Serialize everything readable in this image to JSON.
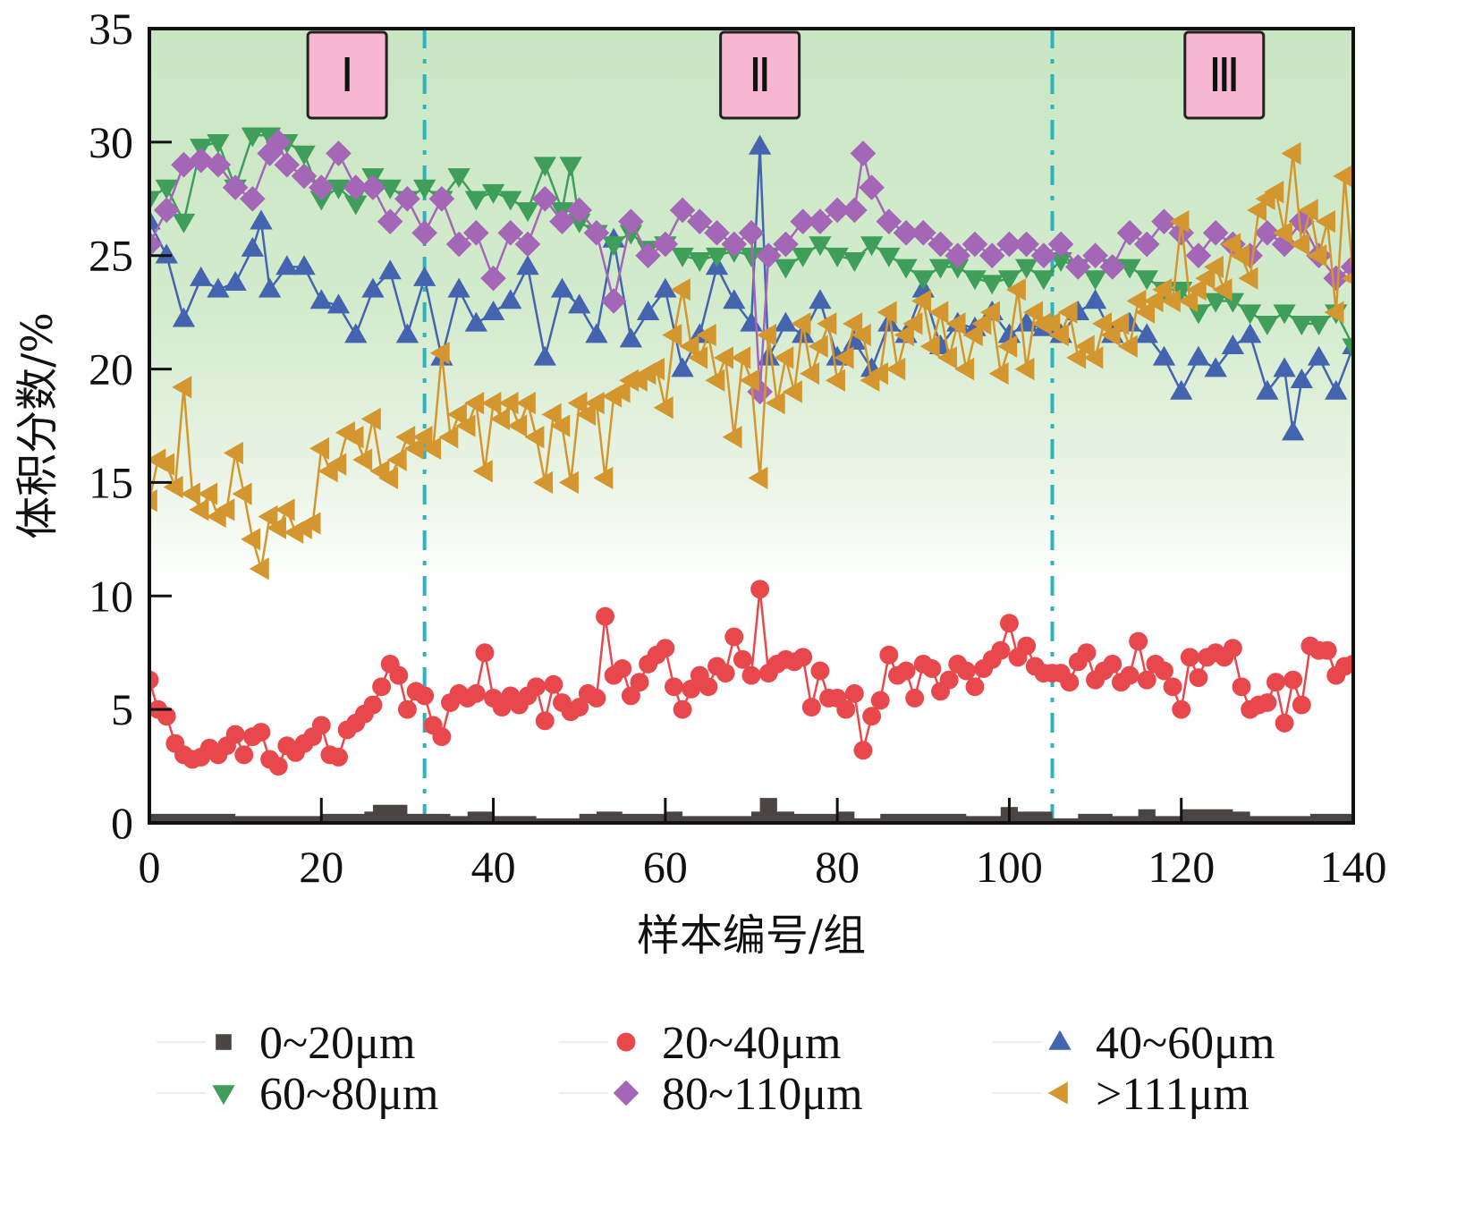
{
  "chart_data": {
    "type": "line",
    "title": "",
    "xlabel": "样本编号/组",
    "ylabel": "体积分数/%",
    "xlim": [
      0,
      140
    ],
    "ylim": [
      0,
      35
    ],
    "xticks": [
      0,
      20,
      40,
      60,
      80,
      100,
      120,
      140
    ],
    "yticks": [
      0,
      5,
      10,
      15,
      20,
      25,
      30,
      35
    ],
    "grid": false,
    "legend_position": "bottom",
    "background": {
      "top_color": "#c9e6c3",
      "bottom_color": "#ffffff",
      "gradient_fade_at_y": 10
    },
    "regions": [
      {
        "label": "Ⅰ",
        "x_from": 0,
        "x_to": 32,
        "label_x": 23
      },
      {
        "label": "Ⅱ",
        "x_from": 32,
        "x_to": 105,
        "label_x": 71
      },
      {
        "label": "Ⅲ",
        "x_from": 105,
        "x_to": 140,
        "label_x": 125
      }
    ],
    "dividers": [
      32,
      105
    ],
    "divider_color": "#2ab3c0",
    "region_label_fill": "#f7b6d2",
    "series": [
      {
        "name": "0~20μm",
        "marker": "square",
        "color": "#4a4444",
        "style": "step-area",
        "x": [
          0,
          10,
          20,
          25,
          26,
          30,
          35,
          37,
          40,
          45,
          50,
          52,
          55,
          60,
          62,
          65,
          70,
          71,
          73,
          75,
          80,
          82,
          85,
          90,
          95,
          99,
          101,
          105,
          108,
          112,
          115,
          117,
          120,
          122,
          124,
          126,
          128,
          130,
          135,
          140
        ],
        "values": [
          0.4,
          0.3,
          0.4,
          0.5,
          0.8,
          0.4,
          0.3,
          0.5,
          0.3,
          0.2,
          0.4,
          0.5,
          0.4,
          0.5,
          0.3,
          0.3,
          0.5,
          1.1,
          0.5,
          0.4,
          0.5,
          0.2,
          0.4,
          0.4,
          0.3,
          0.7,
          0.5,
          0.2,
          0.4,
          0.3,
          0.6,
          0.3,
          0.6,
          0.6,
          0.6,
          0.5,
          0.3,
          0.3,
          0.4,
          0.4
        ]
      },
      {
        "name": "20~40μm",
        "marker": "circle",
        "color": "#e8474c",
        "x": [
          0,
          1,
          2,
          3,
          4,
          5,
          6,
          7,
          8,
          9,
          10,
          11,
          12,
          13,
          14,
          15,
          16,
          17,
          18,
          19,
          20,
          21,
          22,
          23,
          24,
          25,
          26,
          27,
          28,
          29,
          30,
          31,
          32,
          33,
          34,
          35,
          36,
          37,
          38,
          39,
          40,
          41,
          42,
          43,
          44,
          45,
          46,
          47,
          48,
          49,
          50,
          51,
          52,
          53,
          54,
          55,
          56,
          57,
          58,
          59,
          60,
          61,
          62,
          63,
          64,
          65,
          66,
          67,
          68,
          69,
          70,
          71,
          72,
          73,
          74,
          75,
          76,
          77,
          78,
          79,
          80,
          81,
          82,
          83,
          84,
          85,
          86,
          87,
          88,
          89,
          90,
          91,
          92,
          93,
          94,
          95,
          96,
          97,
          98,
          99,
          100,
          101,
          102,
          103,
          104,
          105,
          106,
          107,
          108,
          109,
          110,
          111,
          112,
          113,
          114,
          115,
          116,
          117,
          118,
          119,
          120,
          121,
          122,
          123,
          124,
          125,
          126,
          127,
          128,
          129,
          130,
          131,
          132,
          133,
          134,
          135,
          136,
          137,
          138,
          139,
          140
        ],
        "values": [
          6.3,
          5.0,
          4.7,
          3.5,
          3.0,
          2.8,
          2.9,
          3.3,
          3.0,
          3.4,
          3.9,
          3.0,
          3.8,
          4.0,
          2.8,
          2.5,
          3.4,
          3.1,
          3.5,
          3.8,
          4.3,
          3.0,
          2.9,
          4.1,
          4.4,
          4.8,
          5.2,
          6.0,
          7.0,
          6.5,
          5.0,
          5.8,
          5.6,
          4.3,
          3.8,
          5.3,
          5.7,
          5.5,
          5.7,
          7.5,
          5.5,
          5.1,
          5.6,
          5.2,
          5.6,
          6.0,
          4.5,
          6.1,
          5.3,
          4.9,
          5.1,
          5.7,
          5.5,
          9.1,
          6.5,
          6.8,
          5.6,
          6.2,
          7.0,
          7.4,
          7.7,
          6.0,
          5.0,
          5.9,
          6.5,
          6.0,
          6.9,
          6.6,
          8.2,
          7.2,
          6.5,
          10.3,
          6.6,
          7.0,
          7.2,
          7.1,
          7.3,
          5.1,
          6.7,
          5.5,
          5.5,
          5.0,
          5.7,
          3.2,
          4.7,
          5.4,
          7.4,
          6.5,
          6.7,
          5.5,
          7.0,
          6.8,
          5.8,
          6.3,
          7.0,
          6.7,
          6.0,
          6.8,
          7.2,
          7.6,
          8.8,
          7.3,
          7.8,
          6.9,
          6.6,
          6.6,
          6.6,
          6.2,
          7.1,
          7.5,
          6.3,
          6.7,
          7.0,
          6.2,
          6.5,
          8.0,
          6.3,
          7.0,
          6.7,
          6.0,
          5.0,
          7.3,
          6.4,
          7.3,
          7.5,
          7.3,
          7.7,
          6.0,
          5.0,
          5.2,
          5.3,
          6.2,
          4.4,
          6.3,
          5.2,
          7.8,
          7.6,
          7.6,
          6.5,
          6.9,
          7.0
        ]
      },
      {
        "name": "40~60μm",
        "marker": "triangle-up",
        "color": "#4464b0",
        "x": [
          0,
          2,
          4,
          6,
          8,
          10,
          12,
          13,
          14,
          16,
          18,
          20,
          22,
          24,
          26,
          28,
          30,
          32,
          34,
          36,
          38,
          40,
          42,
          44,
          46,
          48,
          50,
          52,
          54,
          56,
          58,
          60,
          62,
          64,
          66,
          68,
          70,
          71,
          72,
          74,
          76,
          78,
          80,
          82,
          84,
          86,
          88,
          90,
          92,
          94,
          96,
          98,
          100,
          102,
          104,
          106,
          108,
          110,
          112,
          114,
          116,
          118,
          120,
          122,
          124,
          126,
          128,
          130,
          132,
          133,
          134,
          136,
          138,
          140
        ],
        "values": [
          26.5,
          25.0,
          22.2,
          24.0,
          23.5,
          23.8,
          25.3,
          26.5,
          23.5,
          24.5,
          24.5,
          23.0,
          22.8,
          21.5,
          23.5,
          24.3,
          21.5,
          24.0,
          20.5,
          23.5,
          22.0,
          22.5,
          23.0,
          24.5,
          20.5,
          23.5,
          22.8,
          21.5,
          25.7,
          21.3,
          22.5,
          23.5,
          20.0,
          21.5,
          24.5,
          23.0,
          22.0,
          29.8,
          20.5,
          22.0,
          21.5,
          23.0,
          20.5,
          21.2,
          20.0,
          22.0,
          21.5,
          23.5,
          21.0,
          22.0,
          21.8,
          22.5,
          21.5,
          22.0,
          21.8,
          21.5,
          22.5,
          23.0,
          21.5,
          22.0,
          21.5,
          20.5,
          19.0,
          20.5,
          20.0,
          21.0,
          21.5,
          19.0,
          20.0,
          17.2,
          19.5,
          20.5,
          19.0,
          21.0
        ]
      },
      {
        "name": "60~80μm",
        "marker": "triangle-down",
        "color": "#3f9e5a",
        "x": [
          0,
          2,
          4,
          6,
          8,
          10,
          12,
          14,
          16,
          18,
          20,
          22,
          24,
          26,
          28,
          30,
          32,
          34,
          36,
          38,
          40,
          42,
          44,
          46,
          48,
          49,
          50,
          52,
          54,
          56,
          58,
          60,
          62,
          64,
          66,
          68,
          70,
          72,
          74,
          76,
          78,
          80,
          82,
          84,
          86,
          88,
          90,
          92,
          94,
          96,
          98,
          100,
          102,
          104,
          106,
          108,
          110,
          112,
          114,
          116,
          118,
          120,
          122,
          124,
          126,
          128,
          130,
          132,
          134,
          136,
          138,
          140
        ],
        "values": [
          27.5,
          28.0,
          26.5,
          29.8,
          30.0,
          28.0,
          30.3,
          30.3,
          30.0,
          29.5,
          27.5,
          28.0,
          27.3,
          28.5,
          28.0,
          27.5,
          28.0,
          27.5,
          28.5,
          27.5,
          27.8,
          27.5,
          27.0,
          29.0,
          27.0,
          29.0,
          26.5,
          26.0,
          25.5,
          26.0,
          25.3,
          25.5,
          25.0,
          24.8,
          25.0,
          25.2,
          25.0,
          25.0,
          24.5,
          25.0,
          25.5,
          25.0,
          24.8,
          25.5,
          25.0,
          24.5,
          24.0,
          24.5,
          24.5,
          24.0,
          23.8,
          24.0,
          24.5,
          24.0,
          24.8,
          24.5,
          24.0,
          24.5,
          24.5,
          24.0,
          23.5,
          23.5,
          22.5,
          23.0,
          23.0,
          22.5,
          22.0,
          22.5,
          22.0,
          22.0,
          22.5,
          21.0
        ]
      },
      {
        "name": "80~110μm",
        "marker": "diamond",
        "color": "#a466b7",
        "x": [
          0,
          2,
          4,
          6,
          8,
          10,
          12,
          14,
          15,
          16,
          18,
          20,
          22,
          24,
          26,
          28,
          30,
          32,
          34,
          36,
          38,
          40,
          42,
          44,
          46,
          48,
          50,
          52,
          54,
          56,
          58,
          60,
          62,
          64,
          66,
          68,
          70,
          71,
          72,
          74,
          76,
          78,
          80,
          82,
          83,
          84,
          86,
          88,
          90,
          92,
          94,
          96,
          98,
          100,
          102,
          104,
          106,
          108,
          110,
          112,
          114,
          116,
          118,
          120,
          122,
          124,
          126,
          128,
          130,
          132,
          134,
          136,
          138,
          140
        ],
        "values": [
          25.5,
          27.0,
          29.0,
          29.2,
          29.0,
          28.0,
          27.5,
          29.5,
          30.0,
          29.0,
          28.5,
          28.0,
          29.5,
          28.0,
          28.0,
          26.5,
          27.5,
          26.0,
          27.5,
          25.5,
          26.0,
          24.0,
          26.0,
          25.5,
          27.5,
          26.5,
          27.0,
          26.0,
          23.0,
          26.5,
          25.0,
          25.5,
          27.0,
          26.5,
          26.0,
          25.5,
          26.0,
          19.0,
          25.0,
          25.5,
          26.5,
          26.5,
          27.0,
          27.0,
          29.5,
          28.0,
          26.5,
          26.0,
          26.0,
          25.5,
          25.0,
          25.5,
          25.0,
          25.5,
          25.5,
          25.0,
          25.5,
          24.5,
          25.0,
          24.5,
          26.0,
          25.5,
          26.5,
          26.0,
          25.0,
          26.0,
          25.5,
          25.0,
          26.0,
          25.5,
          26.5,
          25.0,
          24.0,
          24.5
        ]
      },
      {
        "name": ">111μm",
        "marker": "triangle-left",
        "color": "#d4962e",
        "x": [
          0,
          1,
          2,
          3,
          4,
          5,
          6,
          7,
          8,
          9,
          10,
          11,
          12,
          13,
          14,
          15,
          16,
          17,
          18,
          19,
          20,
          21,
          22,
          23,
          24,
          25,
          26,
          27,
          28,
          29,
          30,
          31,
          32,
          33,
          34,
          35,
          36,
          37,
          38,
          39,
          40,
          41,
          42,
          43,
          44,
          45,
          46,
          47,
          48,
          49,
          50,
          51,
          52,
          53,
          54,
          55,
          56,
          57,
          58,
          59,
          60,
          61,
          62,
          63,
          64,
          65,
          66,
          67,
          68,
          69,
          70,
          71,
          72,
          73,
          74,
          75,
          76,
          77,
          78,
          79,
          80,
          81,
          82,
          83,
          84,
          85,
          86,
          87,
          88,
          89,
          90,
          91,
          92,
          93,
          94,
          95,
          96,
          97,
          98,
          99,
          100,
          101,
          102,
          103,
          104,
          105,
          106,
          107,
          108,
          109,
          110,
          111,
          112,
          113,
          114,
          115,
          116,
          117,
          118,
          119,
          120,
          121,
          122,
          123,
          124,
          125,
          126,
          127,
          128,
          129,
          130,
          131,
          132,
          133,
          134,
          135,
          136,
          137,
          138,
          139,
          140
        ],
        "values": [
          14.2,
          16.0,
          15.8,
          14.8,
          19.2,
          14.5,
          13.8,
          14.5,
          13.5,
          13.8,
          16.3,
          14.5,
          12.5,
          11.2,
          13.5,
          13.0,
          13.8,
          12.8,
          13.0,
          13.2,
          16.5,
          15.5,
          15.8,
          17.2,
          17.0,
          16.0,
          17.8,
          15.5,
          15.2,
          16.0,
          17.0,
          16.5,
          17.0,
          16.5,
          20.7,
          17.0,
          18.0,
          17.5,
          18.5,
          15.5,
          18.5,
          17.8,
          18.5,
          17.5,
          18.5,
          17.0,
          15.0,
          18.0,
          17.5,
          15.0,
          18.5,
          18.0,
          18.5,
          15.2,
          18.8,
          19.0,
          19.5,
          19.5,
          19.8,
          20.0,
          18.3,
          21.5,
          23.5,
          21.0,
          20.5,
          21.5,
          19.5,
          20.5,
          17.0,
          20.5,
          19.5,
          15.2,
          21.5,
          18.5,
          20.5,
          19.0,
          22.0,
          19.8,
          21.0,
          22.0,
          19.5,
          20.5,
          22.0,
          21.5,
          19.5,
          19.8,
          22.5,
          20.0,
          21.5,
          22.0,
          23.0,
          21.0,
          22.5,
          20.5,
          22.0,
          20.0,
          21.5,
          22.0,
          22.5,
          19.8,
          21.0,
          23.5,
          20.0,
          22.5,
          22.0,
          22.0,
          21.5,
          22.5,
          20.5,
          21.0,
          20.5,
          22.0,
          21.5,
          22.0,
          21.0,
          23.0,
          22.5,
          23.0,
          23.5,
          23.0,
          26.5,
          23.0,
          23.5,
          24.0,
          24.5,
          23.5,
          25.5,
          25.0,
          24.0,
          27.0,
          27.5,
          27.8,
          26.0,
          29.5,
          25.5,
          27.0,
          25.0,
          26.5,
          22.5,
          28.5,
          24.0
        ]
      }
    ]
  }
}
